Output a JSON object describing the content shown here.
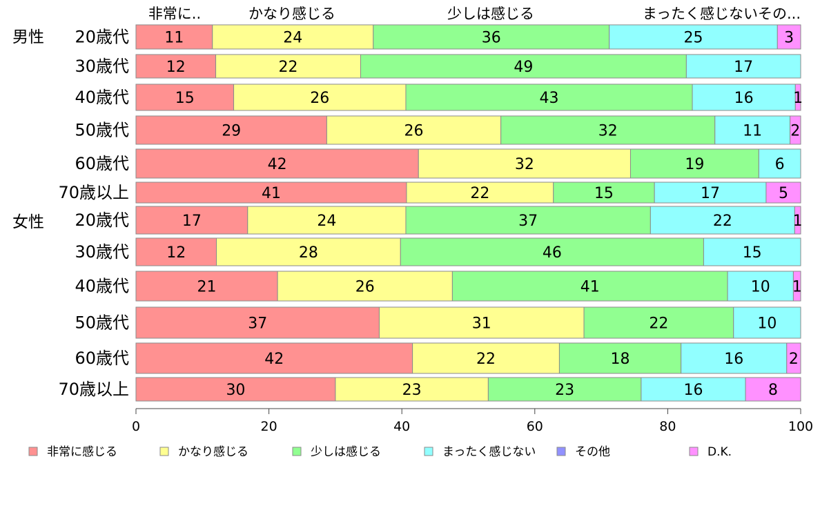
{
  "chart_data": {
    "type": "bar",
    "orientation": "horizontal",
    "stacked": true,
    "top_labels": [
      "非常に..",
      "かなり感じる",
      "少しは感じる",
      "まったく感じないその..."
    ],
    "groups": [
      "男性",
      "女性"
    ],
    "categories": [
      "20歳代",
      "30歳代",
      "40歳代",
      "50歳代",
      "60歳代",
      "70歳以上",
      "20歳代",
      "30歳代",
      "40歳代",
      "50歳代",
      "60歳代",
      "70歳以上"
    ],
    "series": [
      {
        "name": "非常に感じる",
        "color": "#ff9191",
        "values": [
          11.5,
          12,
          14.7,
          28.7,
          42.5,
          40.7,
          16.8,
          12.1,
          21.3,
          36.6,
          41.6,
          30.0
        ]
      },
      {
        "name": "かなり感じる",
        "color": "#ffff91",
        "values": [
          24.2,
          21.8,
          25.9,
          26.2,
          31.9,
          22.1,
          23.8,
          27.7,
          26.3,
          30.8,
          22.1,
          23.0
        ]
      },
      {
        "name": "少しは感じる",
        "color": "#91ff91",
        "values": [
          35.5,
          49,
          43.1,
          32.2,
          19.3,
          15.2,
          36.8,
          45.6,
          41.4,
          22.5,
          18.3,
          23.0
        ]
      },
      {
        "name": "まったく感じない",
        "color": "#91ffff",
        "values": [
          25.3,
          17.2,
          15.5,
          11.3,
          6.3,
          16.8,
          21.7,
          14.6,
          9.9,
          10.1,
          15.9,
          15.7
        ]
      },
      {
        "name": "その他",
        "color": "#9191ff",
        "values": [
          0,
          0,
          0,
          0,
          0,
          0,
          0,
          0,
          0,
          0,
          0,
          0
        ]
      },
      {
        "name": "D.K.",
        "color": "#ff91ff",
        "values": [
          3.5,
          0,
          0.8,
          1.6,
          0,
          5.2,
          0.9,
          0,
          1.1,
          0,
          2.1,
          8.3
        ]
      }
    ],
    "data_labels": [
      [
        "11",
        "24",
        "36",
        "25",
        "3"
      ],
      [
        "12",
        "22",
        "49",
        "17",
        ""
      ],
      [
        "15",
        "26",
        "43",
        "16",
        "1"
      ],
      [
        "29",
        "26",
        "32",
        "11",
        "2"
      ],
      [
        "42",
        "32",
        "19",
        "6",
        ""
      ],
      [
        "41",
        "22",
        "15",
        "17",
        "5"
      ],
      [
        "17",
        "24",
        "37",
        "22",
        "1"
      ],
      [
        "12",
        "28",
        "46",
        "15",
        ""
      ],
      [
        "21",
        "26",
        "41",
        "10",
        "1"
      ],
      [
        "37",
        "31",
        "22",
        "10",
        ""
      ],
      [
        "42",
        "22",
        "18",
        "16",
        "2"
      ],
      [
        "30",
        "23",
        "23",
        "16",
        "8"
      ]
    ],
    "xlim": [
      0,
      100
    ],
    "xticks": [
      "0",
      "20",
      "40",
      "60",
      "80",
      "100"
    ],
    "legend_position": "bottom"
  }
}
